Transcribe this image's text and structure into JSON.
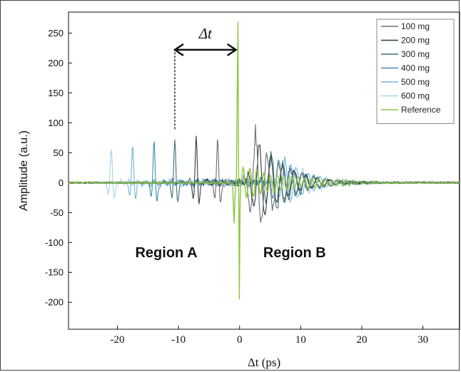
{
  "chart_data": {
    "type": "line",
    "xlabel": "Δt (ps)",
    "ylabel": "Amplitude (a.u.)",
    "xlim": [
      -28,
      36
    ],
    "ylim": [
      -245,
      285
    ],
    "xticks": [
      "-20",
      "-10",
      "0",
      "10",
      "20",
      "30"
    ],
    "yticks": [
      "250",
      "200",
      "150",
      "100",
      "50",
      "0",
      "-50",
      "-100",
      "-150",
      "-200"
    ],
    "grid": false,
    "legend_position": "top-right",
    "annotations": {
      "delta_t": "Δt",
      "region_a": "Region A",
      "region_b": "Region B"
    },
    "series": [
      {
        "name": "100 mg",
        "color": "#6e6e6e",
        "peaks": [
          {
            "x": -3.6,
            "y": 78
          },
          {
            "x": 2.6,
            "y": 100
          },
          {
            "x": 4.2,
            "y": -65
          }
        ]
      },
      {
        "name": "200 mg",
        "color": "#2f3d45",
        "peaks": [
          {
            "x": -7.1,
            "y": 80
          },
          {
            "x": 3.2,
            "y": 80
          },
          {
            "x": 5.0,
            "y": -55
          }
        ]
      },
      {
        "name": "300 mg",
        "color": "#3f6f78",
        "peaks": [
          {
            "x": -10.6,
            "y": 75
          },
          {
            "x": 5.2,
            "y": 60
          },
          {
            "x": 6.8,
            "y": -45
          }
        ]
      },
      {
        "name": "400 mg",
        "color": "#3b8fb0",
        "peaks": [
          {
            "x": -14.0,
            "y": 72
          },
          {
            "x": 6.4,
            "y": 52
          },
          {
            "x": 8.2,
            "y": -40
          }
        ]
      },
      {
        "name": "500 mg",
        "color": "#6fb5d8",
        "peaks": [
          {
            "x": -17.5,
            "y": 65
          },
          {
            "x": 7.4,
            "y": 45
          },
          {
            "x": 9.4,
            "y": -35
          }
        ]
      },
      {
        "name": "600 mg",
        "color": "#a7d4ea",
        "peaks": [
          {
            "x": -21.0,
            "y": 60
          },
          {
            "x": 8.5,
            "y": 40
          },
          {
            "x": 10.5,
            "y": -30
          }
        ]
      },
      {
        "name": "Reference",
        "color": "#8cc63f",
        "peaks": [
          {
            "x": -0.3,
            "y": 278
          },
          {
            "x": -0.05,
            "y": -200
          },
          {
            "x": -0.9,
            "y": -70
          }
        ]
      }
    ]
  }
}
